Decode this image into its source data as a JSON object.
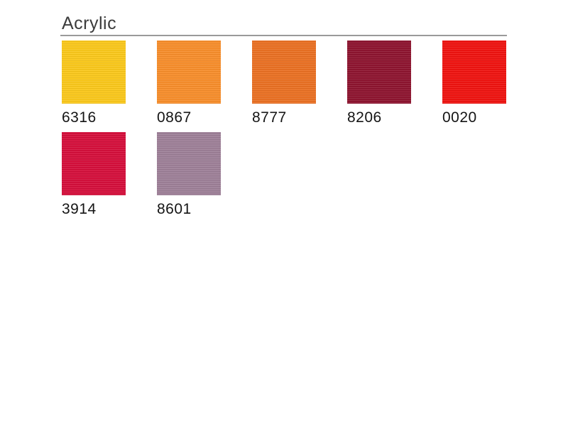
{
  "page": {
    "title": "Acrylic"
  },
  "styles": {
    "rule_color": "#9a9a9a",
    "title_color": "#3c3c3c",
    "label_color": "#141414",
    "background": "#ffffff"
  },
  "swatches": [
    {
      "code": "6316",
      "color": "#f9c71b"
    },
    {
      "code": "0867",
      "color": "#f68d2b"
    },
    {
      "code": "8777",
      "color": "#e97023"
    },
    {
      "code": "8206",
      "color": "#8d142f"
    },
    {
      "code": "0020",
      "color": "#ee1310"
    },
    {
      "code": "3914",
      "color": "#d40f3b"
    },
    {
      "code": "8601",
      "color": "#9d7f97"
    }
  ]
}
